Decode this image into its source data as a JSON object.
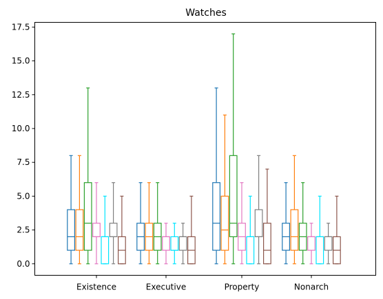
{
  "chart_data": {
    "type": "box",
    "title": "Watches",
    "xlabel": "",
    "ylabel": "",
    "categories": [
      "Existence",
      "Executive",
      "Property",
      "Nonarch"
    ],
    "ylim": [
      -0.85,
      17.85
    ],
    "yticks": [
      0.0,
      2.5,
      5.0,
      7.5,
      10.0,
      12.5,
      15.0,
      17.5
    ],
    "ytick_labels": [
      "0.0",
      "2.5",
      "5.0",
      "7.5",
      "10.0",
      "12.5",
      "15.0",
      "17.5"
    ],
    "grid": false,
    "legend": "none",
    "series": [
      {
        "color": "#1f77b4",
        "boxes": [
          {
            "whislo": 0,
            "q1": 1,
            "med": 2,
            "q3": 4,
            "whishi": 8
          },
          {
            "whislo": 0,
            "q1": 1,
            "med": 2,
            "q3": 3,
            "whishi": 6
          },
          {
            "whislo": 0,
            "q1": 1,
            "med": 3,
            "q3": 6,
            "whishi": 13
          },
          {
            "whislo": 0,
            "q1": 1,
            "med": 2,
            "q3": 3,
            "whishi": 6
          }
        ]
      },
      {
        "color": "#ff7f0e",
        "boxes": [
          {
            "whislo": 0,
            "q1": 1,
            "med": 2,
            "q3": 4,
            "whishi": 8
          },
          {
            "whislo": 0,
            "q1": 1,
            "med": 2,
            "q3": 3,
            "whishi": 6
          },
          {
            "whislo": 0,
            "q1": 1,
            "med": 2.5,
            "q3": 5,
            "whishi": 11
          },
          {
            "whislo": 0,
            "q1": 1,
            "med": 2,
            "q3": 4,
            "whishi": 8
          }
        ]
      },
      {
        "color": "#2ca02c",
        "boxes": [
          {
            "whislo": 0,
            "q1": 1,
            "med": 3,
            "q3": 6,
            "whishi": 13
          },
          {
            "whislo": 0,
            "q1": 1,
            "med": 2,
            "q3": 3,
            "whishi": 6
          },
          {
            "whislo": 0,
            "q1": 2,
            "med": 3,
            "q3": 8,
            "whishi": 17
          },
          {
            "whislo": 0,
            "q1": 1,
            "med": 2,
            "q3": 3,
            "whishi": 6
          }
        ]
      },
      {
        "color": "#e377c2",
        "boxes": [
          {
            "whislo": 0,
            "q1": 2,
            "med": 2,
            "q3": 3,
            "whishi": 6
          },
          {
            "whislo": 0,
            "q1": 1,
            "med": 2,
            "q3": 2,
            "whishi": 3
          },
          {
            "whislo": 0,
            "q1": 1,
            "med": 2,
            "q3": 3,
            "whishi": 6
          },
          {
            "whislo": 0,
            "q1": 1,
            "med": 2,
            "q3": 2,
            "whishi": 3
          }
        ]
      },
      {
        "color": "#00e5ff",
        "boxes": [
          {
            "whislo": 0,
            "q1": 0,
            "med": 2,
            "q3": 2,
            "whishi": 5
          },
          {
            "whislo": 0,
            "q1": 1,
            "med": 1,
            "q3": 2,
            "whishi": 3
          },
          {
            "whislo": 0,
            "q1": 0,
            "med": 2,
            "q3": 2,
            "whishi": 5
          },
          {
            "whislo": 0,
            "q1": 0,
            "med": 2,
            "q3": 2,
            "whishi": 5
          }
        ]
      },
      {
        "color": "#7f7f7f",
        "boxes": [
          {
            "whislo": 0,
            "q1": 2,
            "med": 2,
            "q3": 3,
            "whishi": 6
          },
          {
            "whislo": 0,
            "q1": 1,
            "med": 2,
            "q3": 2,
            "whishi": 3
          },
          {
            "whislo": 0,
            "q1": 2,
            "med": 2,
            "q3": 4,
            "whishi": 8
          },
          {
            "whislo": 0,
            "q1": 1,
            "med": 2,
            "q3": 2,
            "whishi": 3
          }
        ]
      },
      {
        "color": "#8c564b",
        "boxes": [
          {
            "whislo": 0,
            "q1": 0,
            "med": 1,
            "q3": 2,
            "whishi": 5
          },
          {
            "whislo": 0,
            "q1": 0,
            "med": 1,
            "q3": 2,
            "whishi": 5
          },
          {
            "whislo": 0,
            "q1": 0,
            "med": 1,
            "q3": 3,
            "whishi": 7
          },
          {
            "whislo": 0,
            "q1": 0,
            "med": 1,
            "q3": 2,
            "whishi": 5
          }
        ]
      }
    ]
  }
}
